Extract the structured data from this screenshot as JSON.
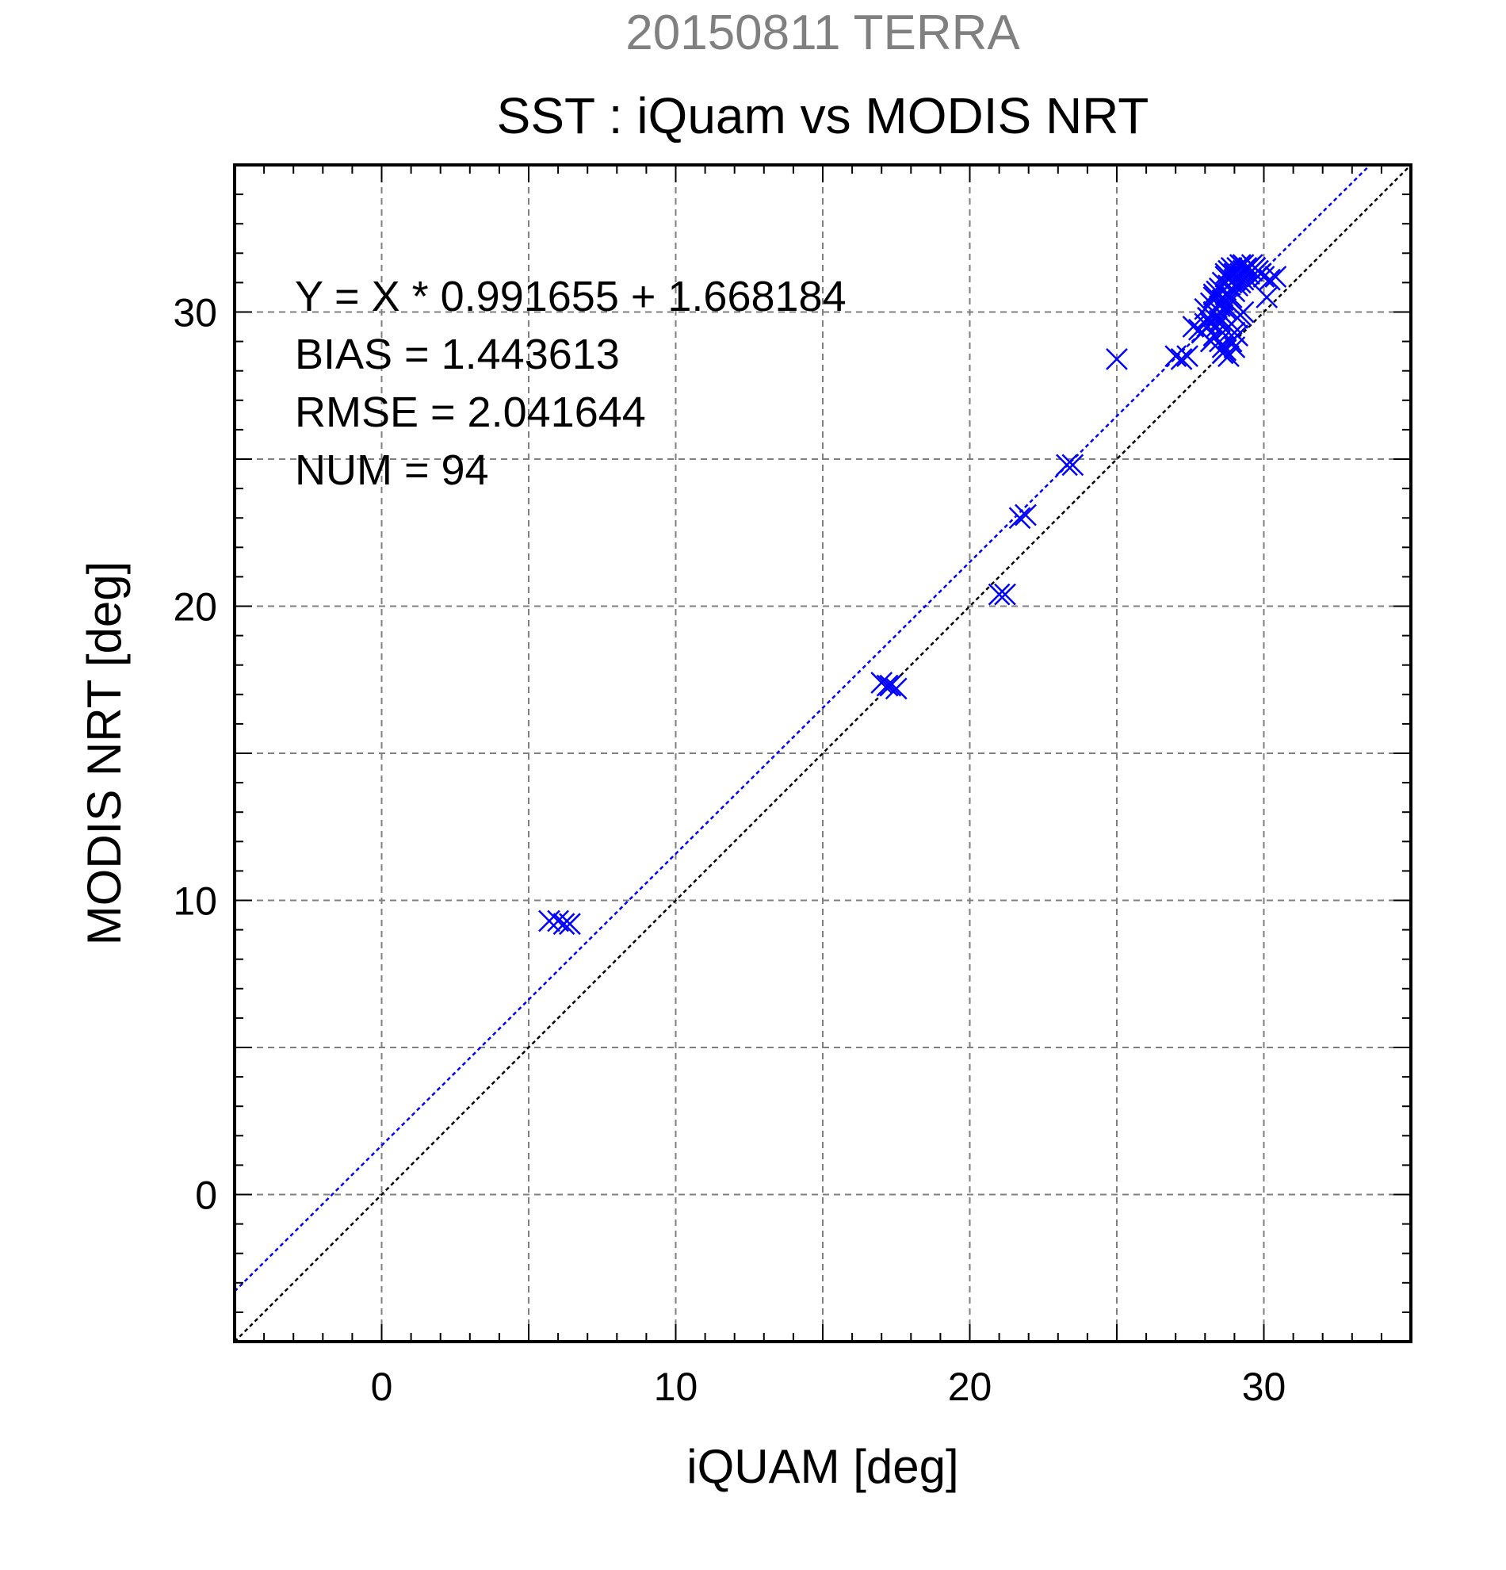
{
  "chart_data": {
    "type": "scatter",
    "suptitle": "20150811 TERRA",
    "title": "SST : iQuam vs MODIS NRT",
    "xlabel": "iQUAM [deg]",
    "ylabel": "MODIS NRT [deg]",
    "xlim": [
      -5,
      35
    ],
    "ylim": [
      -5,
      35
    ],
    "xticks": [
      0,
      10,
      20,
      30
    ],
    "yticks": [
      0,
      10,
      20,
      30
    ],
    "grid": true,
    "colors": {
      "points": "#0000ff",
      "fit_line": "#0000ff",
      "identity_line": "#000000",
      "suptitle": "#808080"
    },
    "stats": [
      "Y = X * 0.991655 + 1.668184",
      "BIAS = 1.443613",
      "RMSE = 2.041644",
      "NUM = 94"
    ],
    "fit": {
      "slope": 0.991655,
      "intercept": 1.668184
    },
    "identity": {
      "slope": 1,
      "intercept": 0
    },
    "series": [
      {
        "marker": "x",
        "x": [
          5.7,
          6.0,
          6.2,
          6.4,
          17.0,
          17.2,
          17.3,
          17.5,
          21.0,
          21.2,
          21.7,
          21.9,
          23.3,
          23.5,
          25.0,
          27.0,
          27.2,
          27.4,
          27.6,
          27.8,
          27.9,
          28.0,
          28.1,
          28.2,
          28.2,
          28.3,
          28.3,
          28.4,
          28.4,
          28.5,
          28.5,
          28.6,
          28.6,
          28.7,
          28.7,
          28.8,
          28.8,
          28.9,
          28.9,
          29.0,
          29.0,
          29.1,
          29.1,
          29.2,
          29.2,
          29.3,
          29.3,
          29.4,
          29.4,
          29.5,
          29.6,
          29.7,
          29.8,
          29.9,
          30.0,
          30.2,
          30.4,
          28.6,
          28.7,
          28.8,
          28.9,
          29.0,
          29.1,
          28.5,
          28.6,
          28.7,
          28.8,
          28.9,
          29.0,
          29.1,
          29.2,
          29.3,
          28.2,
          28.3,
          28.4,
          28.5,
          28.6,
          28.7,
          28.8,
          28.9,
          29.0,
          29.1,
          29.2,
          29.3,
          29.4,
          29.5,
          29.6,
          29.7,
          30.1,
          27.9,
          28.0,
          28.1,
          28.3,
          28.7
        ],
        "y": [
          9.3,
          9.3,
          9.2,
          9.2,
          17.4,
          17.3,
          17.3,
          17.2,
          20.4,
          20.4,
          23.0,
          23.1,
          24.8,
          24.8,
          28.4,
          28.5,
          28.4,
          28.5,
          29.5,
          29.4,
          29.3,
          30.1,
          29.8,
          29.6,
          30.3,
          30.0,
          30.5,
          29.9,
          30.7,
          30.2,
          30.8,
          30.4,
          31.0,
          30.6,
          31.2,
          30.9,
          31.4,
          31.0,
          31.5,
          31.1,
          31.3,
          31.2,
          31.5,
          31.3,
          31.6,
          31.4,
          31.6,
          31.5,
          31.4,
          31.5,
          31.6,
          31.5,
          31.4,
          31.3,
          31.2,
          31.1,
          31.2,
          28.6,
          28.7,
          28.5,
          29.0,
          28.8,
          29.2,
          29.0,
          28.8,
          29.4,
          29.1,
          29.6,
          29.3,
          29.8,
          29.9,
          30.0,
          29.0,
          29.2,
          29.5,
          29.7,
          29.9,
          30.1,
          30.3,
          30.5,
          30.7,
          30.9,
          31.0,
          31.1,
          31.2,
          31.3,
          31.4,
          31.5,
          30.5,
          29.3,
          29.6,
          29.8,
          30.6,
          31.3
        ]
      }
    ]
  }
}
